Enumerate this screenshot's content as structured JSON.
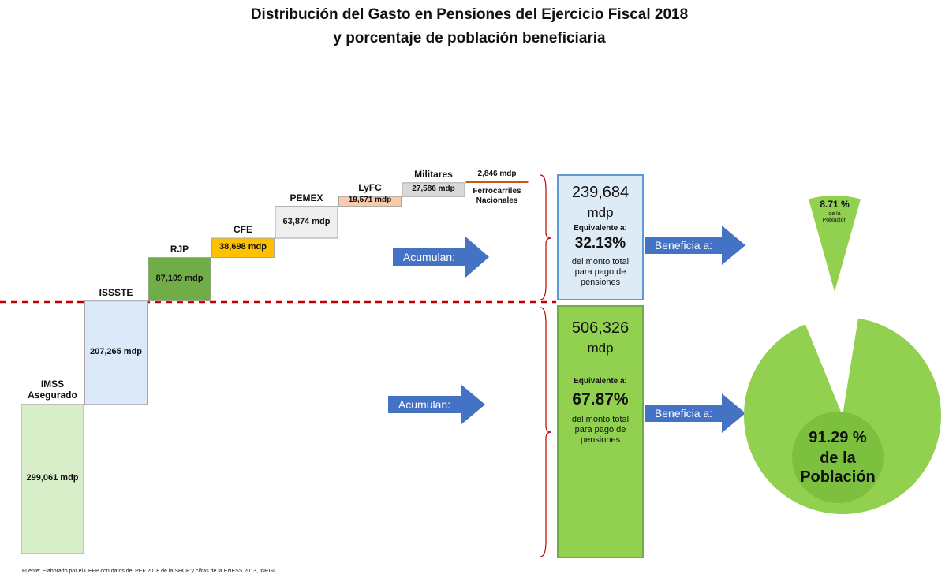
{
  "title": "Distribución del Gasto en Pensiones del Ejercicio Fiscal 2018",
  "subtitle": "y porcentaje de población beneficiaria",
  "chart_data": [
    {
      "type": "waterfall",
      "categories": [
        "IMSS Asegurado",
        "ISSSTE",
        "RJP",
        "CFE",
        "PEMEX",
        "LyFC",
        "Militares",
        "Ferrocarriles Nacionales"
      ],
      "values": [
        299061,
        207265,
        87109,
        38698,
        63874,
        19571,
        27586,
        2846
      ],
      "value_labels": [
        "299,061 mdp",
        "207,265 mdp",
        "87,109 mdp",
        "38,698 mdp",
        "63,874 mdp",
        "19,571 mdp",
        "27,586 mdp",
        "2,846 mdp"
      ],
      "colors": [
        "#d8eec8",
        "#dbe9f9",
        "#70ad47",
        "#ffc000",
        "#eeeeee",
        "#f8cbad",
        "#d9d9d9",
        "#c55a11"
      ]
    },
    {
      "type": "pie",
      "categories": [
        "de la Población",
        "de la Población"
      ],
      "values": [
        91.29,
        8.71
      ],
      "value_labels": [
        "91.29 %",
        "8.71 %"
      ],
      "color": "#92d050"
    }
  ],
  "groups": [
    {
      "amount": "239,684",
      "unit": "mdp",
      "equiv": "Equivalente a:",
      "share": "32.13%",
      "note": "del monto total para pago de pensiones"
    },
    {
      "amount": "506,326",
      "unit": "mdp",
      "equiv": "Equivalente a:",
      "share": "67.87%",
      "note": "del monto total para pago de pensiones"
    }
  ],
  "arrows": {
    "accumulate": "Acumulan:",
    "benefit": "Beneficia a:"
  },
  "source": "Fuente: Elaborado por el CEFP con datos del PEF 2018 de la SHCP y cifras de la ENESS 2013, INEGI."
}
